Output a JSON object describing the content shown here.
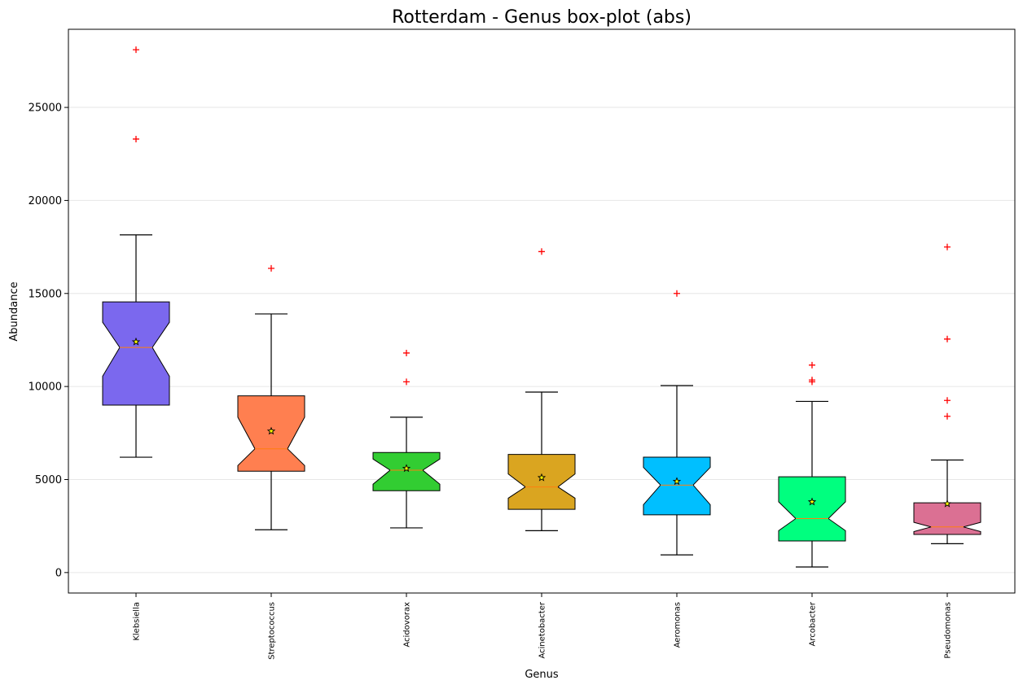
{
  "chart_data": {
    "type": "boxplot",
    "title": "Rotterdam - Genus box-plot (abs)",
    "xlabel": "Genus",
    "ylabel": "Abundance",
    "ylim": [
      -1100,
      29200
    ],
    "yticks": [
      0,
      5000,
      10000,
      15000,
      20000,
      25000
    ],
    "grid": "horizontal",
    "notched": true,
    "mean_marker": "star",
    "outlier_marker": "+",
    "outlier_color": "#ff0000",
    "categories": [
      "Klebsiella",
      "Streptococcus",
      "Acidovorax",
      "Acinetobacter",
      "Aeromonas",
      "Arcobacter",
      "Pseudomonas"
    ],
    "boxes": [
      {
        "name": "Klebsiella",
        "color": "#7b68ee",
        "whislo": 6200,
        "q1": 9000,
        "med": 12100,
        "q3": 14550,
        "whishi": 18150,
        "mean": 12400,
        "notch_lo": 10550,
        "notch_hi": 13450,
        "outliers": [
          23300,
          28100
        ]
      },
      {
        "name": "Streptococcus",
        "color": "#ff7f50",
        "whislo": 2300,
        "q1": 5450,
        "med": 6650,
        "q3": 9500,
        "whishi": 13900,
        "mean": 7600,
        "notch_lo": 5750,
        "notch_hi": 8350,
        "outliers": [
          16350
        ]
      },
      {
        "name": "Acidovorax",
        "color": "#32cd32",
        "whislo": 2400,
        "q1": 4400,
        "med": 5500,
        "q3": 6450,
        "whishi": 8350,
        "mean": 5600,
        "notch_lo": 4750,
        "notch_hi": 6100,
        "outliers": [
          10250,
          11800
        ]
      },
      {
        "name": "Acinetobacter",
        "color": "#daa520",
        "whislo": 2250,
        "q1": 3400,
        "med": 4600,
        "q3": 6350,
        "whishi": 9700,
        "mean": 5100,
        "notch_lo": 4000,
        "notch_hi": 5300,
        "outliers": [
          17250
        ]
      },
      {
        "name": "Aeromonas",
        "color": "#00bfff",
        "whislo": 950,
        "q1": 3100,
        "med": 4700,
        "q3": 6200,
        "whishi": 10050,
        "mean": 4900,
        "notch_lo": 3650,
        "notch_hi": 5650,
        "outliers": [
          15000
        ]
      },
      {
        "name": "Arcobacter",
        "color": "#00ff7f",
        "whislo": 300,
        "q1": 1700,
        "med": 2900,
        "q3": 5150,
        "whishi": 9200,
        "mean": 3800,
        "notch_lo": 2250,
        "notch_hi": 3800,
        "outliers": [
          10250,
          10350,
          11150
        ]
      },
      {
        "name": "Pseudomonas",
        "color": "#db7093",
        "whislo": 1550,
        "q1": 2050,
        "med": 2450,
        "q3": 3750,
        "whishi": 6050,
        "mean": 3700,
        "notch_lo": 2200,
        "notch_hi": 2700,
        "outliers": [
          8400,
          9250,
          12550,
          17500
        ]
      }
    ]
  }
}
